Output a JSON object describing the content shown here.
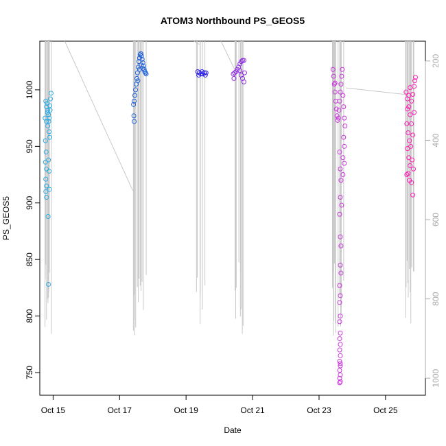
{
  "chart_data": {
    "type": "scatter",
    "title": "ATOM3 Northbound PS_GEOS5",
    "xlabel": "Date",
    "ylabel": "PS_GEOS5",
    "xlim": [
      14.6,
      26.2
    ],
    "ylim": [
      730,
      1043
    ],
    "right_ylim": [
      1043,
      150
    ],
    "x_ticks": [
      {
        "value": 15,
        "label": "Oct 15"
      },
      {
        "value": 17,
        "label": "Oct 17"
      },
      {
        "value": 19,
        "label": "Oct 19"
      },
      {
        "value": 21,
        "label": "Oct 21"
      },
      {
        "value": 23,
        "label": "Oct 23"
      },
      {
        "value": 25,
        "label": "Oct 25"
      }
    ],
    "y_ticks": [
      750,
      800,
      850,
      900,
      950,
      1000
    ],
    "right_y_ticks": [
      200,
      400,
      600,
      800,
      1000
    ],
    "grid": false,
    "series": [
      {
        "color": "#29abe2",
        "points": [
          [
            14.78,
            990
          ],
          [
            14.8,
            985
          ],
          [
            14.82,
            988
          ],
          [
            14.84,
            982
          ],
          [
            14.86,
            978
          ],
          [
            14.88,
            975
          ],
          [
            14.9,
            986
          ],
          [
            14.92,
            992
          ],
          [
            14.94,
            997
          ],
          [
            14.76,
            975
          ],
          [
            14.8,
            972
          ],
          [
            14.84,
            968
          ],
          [
            14.88,
            963
          ],
          [
            14.9,
            958
          ],
          [
            14.77,
            955
          ],
          [
            14.79,
            945
          ],
          [
            14.77,
            936
          ],
          [
            14.8,
            930
          ],
          [
            14.86,
            938
          ],
          [
            14.88,
            928
          ],
          [
            14.78,
            921
          ],
          [
            14.8,
            915
          ],
          [
            14.78,
            910
          ],
          [
            14.8,
            905
          ],
          [
            14.89,
            912
          ],
          [
            14.85,
            888
          ],
          [
            14.86,
            828
          ],
          [
            14.83,
            980
          ],
          [
            14.87,
            972
          ],
          [
            14.91,
            982
          ]
        ]
      },
      {
        "color": "#1e5fd8",
        "points": [
          [
            17.42,
            987
          ],
          [
            17.44,
            990
          ],
          [
            17.46,
            995
          ],
          [
            17.48,
            1000
          ],
          [
            17.5,
            1005
          ],
          [
            17.52,
            1010
          ],
          [
            17.54,
            1015
          ],
          [
            17.56,
            1020
          ],
          [
            17.58,
            1025
          ],
          [
            17.6,
            1028
          ],
          [
            17.62,
            1031
          ],
          [
            17.64,
            1032
          ],
          [
            17.66,
            1030
          ],
          [
            17.68,
            1027
          ],
          [
            17.7,
            1024
          ],
          [
            17.72,
            1021
          ],
          [
            17.74,
            1018
          ],
          [
            17.76,
            1016
          ],
          [
            17.78,
            1015
          ],
          [
            17.8,
            1014
          ],
          [
            17.43,
            977
          ],
          [
            17.44,
            972
          ],
          [
            17.55,
            1008
          ],
          [
            17.6,
            1018
          ],
          [
            17.65,
            1022
          ],
          [
            17.7,
            1019
          ]
        ]
      },
      {
        "color": "#2b1fe6",
        "points": [
          [
            19.35,
            1016
          ],
          [
            19.4,
            1015
          ],
          [
            19.45,
            1014
          ],
          [
            19.5,
            1014
          ],
          [
            19.55,
            1015
          ],
          [
            19.58,
            1013
          ],
          [
            19.6,
            1015
          ],
          [
            19.38,
            1013
          ],
          [
            19.48,
            1016
          ]
        ]
      },
      {
        "color": "#8e2be6",
        "points": [
          [
            20.42,
            1014
          ],
          [
            20.46,
            1015
          ],
          [
            20.5,
            1016
          ],
          [
            20.54,
            1018
          ],
          [
            20.58,
            1020
          ],
          [
            20.62,
            1023
          ],
          [
            20.66,
            1025
          ],
          [
            20.7,
            1026
          ],
          [
            20.74,
            1026
          ],
          [
            20.44,
            1010
          ],
          [
            20.62,
            1017
          ],
          [
            20.66,
            1013
          ],
          [
            20.7,
            1010
          ],
          [
            20.74,
            1007
          ],
          [
            20.76,
            1015
          ]
        ]
      },
      {
        "color": "#cc33dd",
        "points": [
          [
            23.42,
            1018
          ],
          [
            23.44,
            1012
          ],
          [
            23.46,
            1005
          ],
          [
            23.48,
            998
          ],
          [
            23.5,
            990
          ],
          [
            23.52,
            983
          ],
          [
            23.54,
            977
          ],
          [
            23.56,
            973
          ],
          [
            23.58,
            975
          ],
          [
            23.6,
            982
          ],
          [
            23.62,
            990
          ],
          [
            23.64,
            998
          ],
          [
            23.66,
            1005
          ],
          [
            23.68,
            1012
          ],
          [
            23.7,
            1018
          ],
          [
            23.72,
            995
          ],
          [
            23.74,
            985
          ],
          [
            23.76,
            975
          ],
          [
            23.78,
            968
          ],
          [
            23.74,
            958
          ],
          [
            23.76,
            950
          ],
          [
            23.72,
            940
          ],
          [
            23.76,
            935
          ],
          [
            23.72,
            925
          ],
          [
            23.62,
            945
          ],
          [
            23.64,
            930
          ],
          [
            23.66,
            920
          ],
          [
            23.64,
            905
          ],
          [
            23.62,
            890
          ],
          [
            23.68,
            898
          ],
          [
            23.64,
            870
          ],
          [
            23.66,
            862
          ],
          [
            23.64,
            845
          ],
          [
            23.66,
            838
          ],
          [
            23.62,
            827
          ],
          [
            23.64,
            818
          ],
          [
            23.62,
            812
          ],
          [
            23.64,
            800
          ],
          [
            23.62,
            795
          ],
          [
            23.64,
            785
          ],
          [
            23.62,
            780
          ],
          [
            23.64,
            775
          ],
          [
            23.62,
            770
          ],
          [
            23.64,
            765
          ],
          [
            23.62,
            760
          ],
          [
            23.64,
            756
          ],
          [
            23.62,
            752
          ],
          [
            23.64,
            748
          ],
          [
            23.62,
            745
          ],
          [
            23.64,
            742
          ],
          [
            23.62,
            741
          ],
          [
            23.64,
            758
          ],
          [
            23.48,
            1006
          ]
        ]
      },
      {
        "color": "#ff1ab3",
        "points": [
          [
            25.62,
            998
          ],
          [
            25.66,
            992
          ],
          [
            25.7,
            985
          ],
          [
            25.74,
            978
          ],
          [
            25.78,
            990
          ],
          [
            25.82,
            996
          ],
          [
            25.86,
            1003
          ],
          [
            25.88,
            1008
          ],
          [
            25.9,
            1011
          ],
          [
            25.64,
            970
          ],
          [
            25.68,
            962
          ],
          [
            25.72,
            955
          ],
          [
            25.66,
            948
          ],
          [
            25.7,
            940
          ],
          [
            25.74,
            933
          ],
          [
            25.68,
            926
          ],
          [
            25.72,
            920
          ],
          [
            25.64,
            925
          ],
          [
            25.78,
            970
          ],
          [
            25.82,
            960
          ],
          [
            25.76,
            950
          ],
          [
            25.8,
            938
          ],
          [
            25.84,
            930
          ],
          [
            25.78,
            918
          ],
          [
            25.82,
            907
          ],
          [
            25.86,
            980
          ],
          [
            25.7,
            995
          ],
          [
            25.74,
            1002
          ],
          [
            25.66,
            983
          ]
        ]
      }
    ]
  }
}
